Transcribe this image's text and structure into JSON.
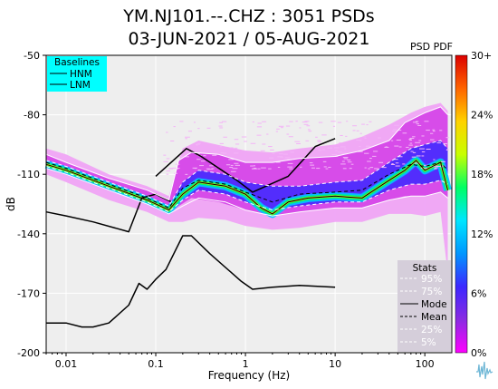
{
  "chart_data": {
    "type": "heatmap",
    "title_line1": "YM.NJ101.--.CHZ : 3051 PSDs",
    "title_line2": "03-JUN-2021 / 05-AUG-2021",
    "xlabel": "Frequency (Hz)",
    "ylabel": "dB",
    "x_scale": "log",
    "xlim": [
      0.006,
      200
    ],
    "ylim": [
      -200,
      -50
    ],
    "x_ticks": [
      {
        "value": 0.01,
        "label": "0.01"
      },
      {
        "value": 0.1,
        "label": "0.1"
      },
      {
        "value": 1,
        "label": "1"
      },
      {
        "value": 10,
        "label": "10"
      },
      {
        "value": 100,
        "label": "100"
      }
    ],
    "y_ticks": [
      {
        "value": -50,
        "label": "-50"
      },
      {
        "value": -80,
        "label": "-80"
      },
      {
        "value": -110,
        "label": "-110"
      },
      {
        "value": -140,
        "label": "-140"
      },
      {
        "value": -170,
        "label": "-170"
      },
      {
        "value": -200,
        "label": "-200"
      }
    ],
    "grid": true,
    "colorbar": {
      "title": "PSD PDF",
      "labels": [
        "30+",
        "24%",
        "18%",
        "12%",
        "6%",
        "0%"
      ],
      "stops": [
        "#ff00ff",
        "#8a2be2",
        "#3c28ff",
        "#0096ff",
        "#00e6ff",
        "#00ff64",
        "#c8ff00",
        "#ffd200",
        "#ff6400",
        "#dc0000"
      ]
    },
    "baselines_legend": {
      "title": "Baselines",
      "entries": [
        "HNM",
        "LNM"
      ],
      "background": "#00ffff",
      "placement": "top-left"
    },
    "stats_legend": {
      "title": "Stats",
      "entries": [
        "95%",
        "75%",
        "Mode",
        "Mean",
        "25%",
        "5%"
      ],
      "placement": "bottom-right"
    },
    "series": [
      {
        "name": "HNM",
        "x": [
          0.1,
          0.22,
          0.32,
          0.8,
          1.2,
          3,
          6,
          10
        ],
        "y": [
          -111,
          -97,
          -101,
          -113,
          -119,
          -111,
          -96,
          -92
        ]
      },
      {
        "name": "LNM",
        "x": [
          0.006,
          0.01,
          0.02,
          0.05,
          0.07,
          0.1,
          0.11,
          0.15
        ],
        "y": [
          -129,
          -131,
          -134,
          -139,
          -122,
          -120,
          -121,
          -124
        ]
      },
      {
        "name": "LNM",
        "x": [
          0.006,
          0.01,
          0.015,
          0.02,
          0.03,
          0.05,
          0.065,
          0.08,
          0.1,
          0.13,
          0.2,
          0.25,
          0.4,
          0.9,
          1.2,
          2,
          4,
          10
        ],
        "y": [
          -185,
          -185,
          -187,
          -187,
          -185,
          -176,
          -165,
          -168,
          -163,
          -158,
          -141,
          -141,
          -150,
          -164,
          -168,
          -167,
          -166,
          -167
        ]
      },
      {
        "name": "95%",
        "x": [
          0.006,
          0.01,
          0.03,
          0.08,
          0.14,
          0.18,
          0.25,
          0.5,
          1,
          2,
          4,
          10,
          20,
          40,
          60,
          100,
          150,
          180
        ],
        "y": [
          -100,
          -104,
          -112,
          -118,
          -123,
          -103,
          -99,
          -100,
          -104,
          -104,
          -102,
          -101,
          -98,
          -93,
          -84,
          -79,
          -76,
          -80
        ]
      },
      {
        "name": "75%",
        "x": [
          0.006,
          0.01,
          0.03,
          0.08,
          0.14,
          0.2,
          0.3,
          0.6,
          1,
          2,
          4,
          10,
          20,
          40,
          70,
          100,
          150,
          180
        ],
        "y": [
          -103,
          -106,
          -114,
          -121,
          -126,
          -114,
          -108,
          -110,
          -114,
          -116,
          -116,
          -114,
          -113,
          -104,
          -97,
          -95,
          -93,
          -97
        ]
      },
      {
        "name": "Mode",
        "x": [
          0.006,
          0.01,
          0.03,
          0.08,
          0.14,
          0.2,
          0.3,
          0.6,
          1,
          1.5,
          2,
          3,
          5,
          10,
          20,
          40,
          60,
          80,
          100,
          150,
          180
        ],
        "y": [
          -105,
          -108,
          -116,
          -123,
          -128,
          -120,
          -114,
          -116,
          -120,
          -127,
          -130,
          -124,
          -122,
          -121,
          -122,
          -113,
          -108,
          -103,
          -108,
          -104,
          -118
        ]
      },
      {
        "name": "Mean",
        "x": [
          0.006,
          0.01,
          0.03,
          0.08,
          0.14,
          0.2,
          0.3,
          0.6,
          1,
          2,
          4,
          10,
          20,
          40,
          70,
          100,
          150,
          180
        ],
        "y": [
          -104,
          -107,
          -115,
          -122,
          -127,
          -117,
          -113,
          -115,
          -119,
          -124,
          -120,
          -119,
          -118,
          -110,
          -105,
          -106,
          -104,
          -108
        ]
      },
      {
        "name": "25%",
        "x": [
          0.006,
          0.01,
          0.03,
          0.08,
          0.14,
          0.2,
          0.3,
          0.6,
          1,
          2,
          4,
          10,
          20,
          40,
          70,
          100,
          150,
          180
        ],
        "y": [
          -106,
          -109,
          -117,
          -124,
          -129,
          -123,
          -118,
          -120,
          -124,
          -128,
          -126,
          -124,
          -124,
          -118,
          -115,
          -115,
          -113,
          -115
        ]
      },
      {
        "name": "5%",
        "x": [
          0.006,
          0.01,
          0.03,
          0.08,
          0.14,
          0.2,
          0.3,
          0.6,
          1,
          2,
          4,
          10,
          20,
          40,
          70,
          100,
          150,
          180
        ],
        "y": [
          -107,
          -110,
          -118,
          -125,
          -130,
          -126,
          -122,
          -124,
          -128,
          -131,
          -129,
          -127,
          -127,
          -123,
          -121,
          -121,
          -119,
          -122
        ]
      }
    ],
    "pdf_band": {
      "x": [
        0.006,
        0.01,
        0.03,
        0.08,
        0.14,
        0.2,
        0.3,
        0.6,
        1,
        2,
        4,
        10,
        20,
        40,
        70,
        100,
        150,
        180
      ],
      "upper": [
        -97,
        -100,
        -110,
        -116,
        -121,
        -97,
        -93,
        -96,
        -98,
        -99,
        -97,
        -95,
        -91,
        -85,
        -79,
        -76,
        -74,
        -78
      ],
      "lower": [
        -110,
        -114,
        -123,
        -129,
        -134,
        -134,
        -132,
        -133,
        -136,
        -138,
        -137,
        -134,
        -134,
        -130,
        -130,
        -131,
        -129,
        -160
      ]
    }
  }
}
